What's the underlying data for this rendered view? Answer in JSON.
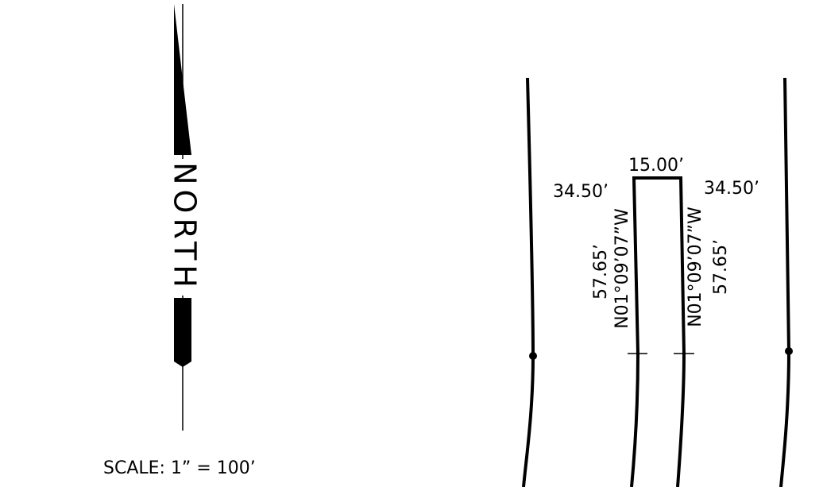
{
  "north_arrow": {
    "label": "NORTH"
  },
  "scale": "SCALE: 1” = 100’",
  "lot": {
    "front": "15.00’",
    "left_offset": "34.50’",
    "right_offset": "34.50’",
    "left_side": {
      "distance": "57.65’",
      "bearing": "N01°09’07”W"
    },
    "right_side": {
      "distance": "57.65’",
      "bearing": "N01°09’07”W"
    }
  }
}
